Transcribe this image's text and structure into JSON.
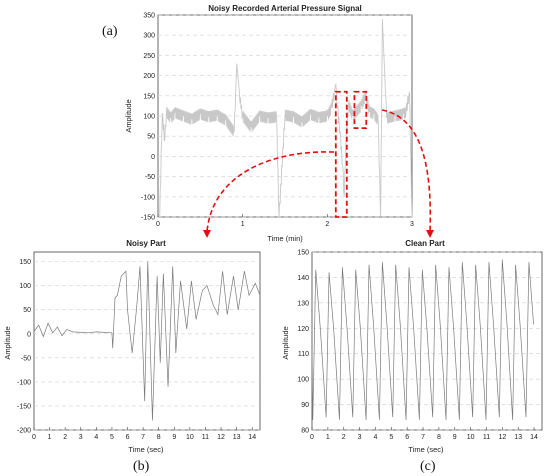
{
  "panel_labels": {
    "a": "(a)",
    "b": "(b)",
    "c": "(c)"
  },
  "colors": {
    "signal_top": "#c8c8c8",
    "signal_bottom": "#7a7a7a",
    "highlight": "#e01010",
    "grid": "#d0d0d0",
    "axis": "#444444"
  },
  "chart_data": [
    {
      "type": "line",
      "title": "Noisy Recorded Arterial Pressure Signal",
      "xlabel": "Time (min)",
      "ylabel": "Amplitude",
      "xlim": [
        0,
        3
      ],
      "ylim": [
        -150,
        350
      ],
      "xticks": [
        "0",
        "1",
        "2",
        "3"
      ],
      "yticks": [
        "-150",
        "-100",
        "-50",
        "0",
        "50",
        "100",
        "150",
        "200",
        "250",
        "300",
        "350"
      ],
      "grid": "dashed horizontal",
      "series": [
        {
          "x": [
            0.02,
            0.05,
            0.08,
            0.1,
            0.15,
            0.2,
            0.3,
            0.4,
            0.5,
            0.6,
            0.7,
            0.8,
            0.9,
            0.93,
            0.98,
            1.0,
            1.1,
            1.2,
            1.3,
            1.4,
            1.43,
            1.5,
            1.6,
            1.7,
            1.8,
            1.9,
            2.0,
            2.05,
            2.1,
            2.12,
            2.15,
            2.18,
            2.2,
            2.22,
            2.25,
            2.3,
            2.4,
            2.45,
            2.5,
            2.55,
            2.6,
            2.63,
            2.65,
            2.7,
            2.8,
            2.9,
            2.93,
            2.97,
            3.0
          ],
          "y": [
            -150,
            105,
            40,
            110,
            95,
            108,
            100,
            92,
            105,
            98,
            102,
            90,
            60,
            230,
            118,
            100,
            72,
            100,
            95,
            98,
            -150,
            102,
            98,
            85,
            104,
            96,
            100,
            120,
            180,
            120,
            60,
            -20,
            -100,
            40,
            130,
            100,
            125,
            150,
            110,
            105,
            90,
            -150,
            340,
            95,
            100,
            105,
            110,
            160,
            -150
          ]
        }
      ],
      "annotations": [
        {
          "type": "dashed-box",
          "label": "noisy segment",
          "x_range": [
            2.1,
            2.23
          ],
          "y_range": [
            -150,
            160
          ]
        },
        {
          "type": "dashed-box",
          "label": "clean segment",
          "x_range": [
            2.32,
            2.46
          ],
          "y_range": [
            70,
            160
          ]
        }
      ]
    },
    {
      "type": "line",
      "title": "Noisy Part",
      "xlabel": "Time (sec)",
      "ylabel": "Amplitude",
      "xlim": [
        0,
        14.5
      ],
      "ylim": [
        -200,
        170
      ],
      "xticks": [
        "0",
        "1",
        "2",
        "3",
        "4",
        "5",
        "6",
        "7",
        "8",
        "9",
        "10",
        "11",
        "12",
        "13",
        "14"
      ],
      "yticks": [
        "-200",
        "-150",
        "-100",
        "-50",
        "0",
        "50",
        "100",
        "150"
      ],
      "grid": "dashed horizontal",
      "series": [
        {
          "x": [
            0,
            0.3,
            0.6,
            0.9,
            1.2,
            1.5,
            1.8,
            2.1,
            2.5,
            3.0,
            3.5,
            4.0,
            4.5,
            5.0,
            5.05,
            5.2,
            5.35,
            5.6,
            5.9,
            6.0,
            6.3,
            6.6,
            6.8,
            7.1,
            7.3,
            7.6,
            7.9,
            8.1,
            8.3,
            8.6,
            8.9,
            9.1,
            9.4,
            9.8,
            10.1,
            10.4,
            10.8,
            11.1,
            11.5,
            11.8,
            12.1,
            12.4,
            12.8,
            13.1,
            13.5,
            13.8,
            14.2,
            14.5
          ],
          "y": [
            5,
            18,
            -6,
            22,
            2,
            14,
            -4,
            9,
            4,
            3,
            2,
            4,
            3,
            2,
            -30,
            75,
            80,
            120,
            130,
            50,
            -40,
            60,
            140,
            -140,
            150,
            -180,
            120,
            -60,
            125,
            -110,
            140,
            -40,
            110,
            10,
            110,
            30,
            90,
            100,
            60,
            40,
            130,
            40,
            120,
            50,
            130,
            80,
            105,
            80
          ]
        }
      ]
    },
    {
      "type": "line",
      "title": "Clean Part",
      "xlabel": "Time (sec)",
      "ylabel": "Amplitude",
      "xlim": [
        0,
        14.5
      ],
      "ylim": [
        80,
        150
      ],
      "xticks": [
        "0",
        "1",
        "2",
        "3",
        "4",
        "5",
        "6",
        "7",
        "8",
        "9",
        "10",
        "11",
        "12",
        "13",
        "14"
      ],
      "yticks": [
        "80",
        "90",
        "100",
        "110",
        "120",
        "130",
        "140",
        "150"
      ],
      "grid": "dashed horizontal",
      "period_sec": 0.84,
      "series": [
        {
          "peaks": [
            143,
            142,
            144,
            143,
            145,
            146,
            145,
            144,
            143,
            145,
            144,
            146,
            145,
            146,
            147,
            145,
            146
          ],
          "troughs": [
            84,
            85,
            84,
            85,
            84,
            84,
            85,
            84,
            84,
            85,
            84,
            84,
            85,
            84,
            85,
            84,
            85
          ]
        }
      ]
    }
  ]
}
